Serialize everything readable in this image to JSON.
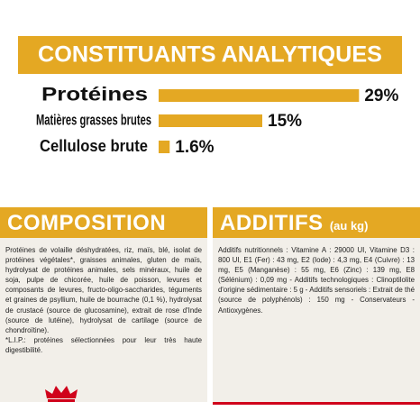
{
  "chart_data": {
    "type": "bar",
    "orientation": "horizontal",
    "title": "CONSTITUANTS ANALYTIQUES",
    "categories": [
      "Protéines",
      "Matières grasses brutes",
      "Cellulose brute"
    ],
    "values": [
      29,
      15,
      1.6
    ],
    "value_labels": [
      "29%",
      "15%",
      "1.6%"
    ],
    "color": "#e4a823",
    "xlim": [
      0,
      30
    ]
  },
  "composition": {
    "title": "COMPOSITION",
    "text": "Protéines de volaille déshydratées, riz, maïs, blé, isolat de protéines végétales*, graisses animales, gluten de maïs, hydrolysat de protéines animales, sels minéraux, huile de soja, pulpe de chicorée, huile de poisson, levures et composants de levures, fructo-oligo-saccharides, téguments et graines de psyllium, huile de bourrache (0,1 %), hydrolysat de crustacé (source de glucosamine), extrait de rose d'Inde (source de lutéine), hydrolysat de cartilage (source de chondroïtine).",
    "note": "*L.I.P.: protéines sélectionnées pour leur très haute digestibilité."
  },
  "additifs": {
    "title": "ADDITIFS",
    "unit": "(au kg)",
    "text": "Additifs nutritionnels : Vitamine A : 29000 UI, Vitamine D3 : 800 UI, E1 (Fer) : 43 mg, E2 (Iode) : 4,3 mg, E4 (Cuivre) : 13 mg, E5 (Manganèse) : 55 mg, E6 (Zinc) : 139 mg, E8 (Sélénium) : 0,09 mg - Additifs technologiques : Clinoptilolite d'origine sédimentaire : 5 g - Additifs sensoriels : Extrait de thé (source de polyphénols) : 150 mg - Conservateurs - Antioxygènes."
  }
}
